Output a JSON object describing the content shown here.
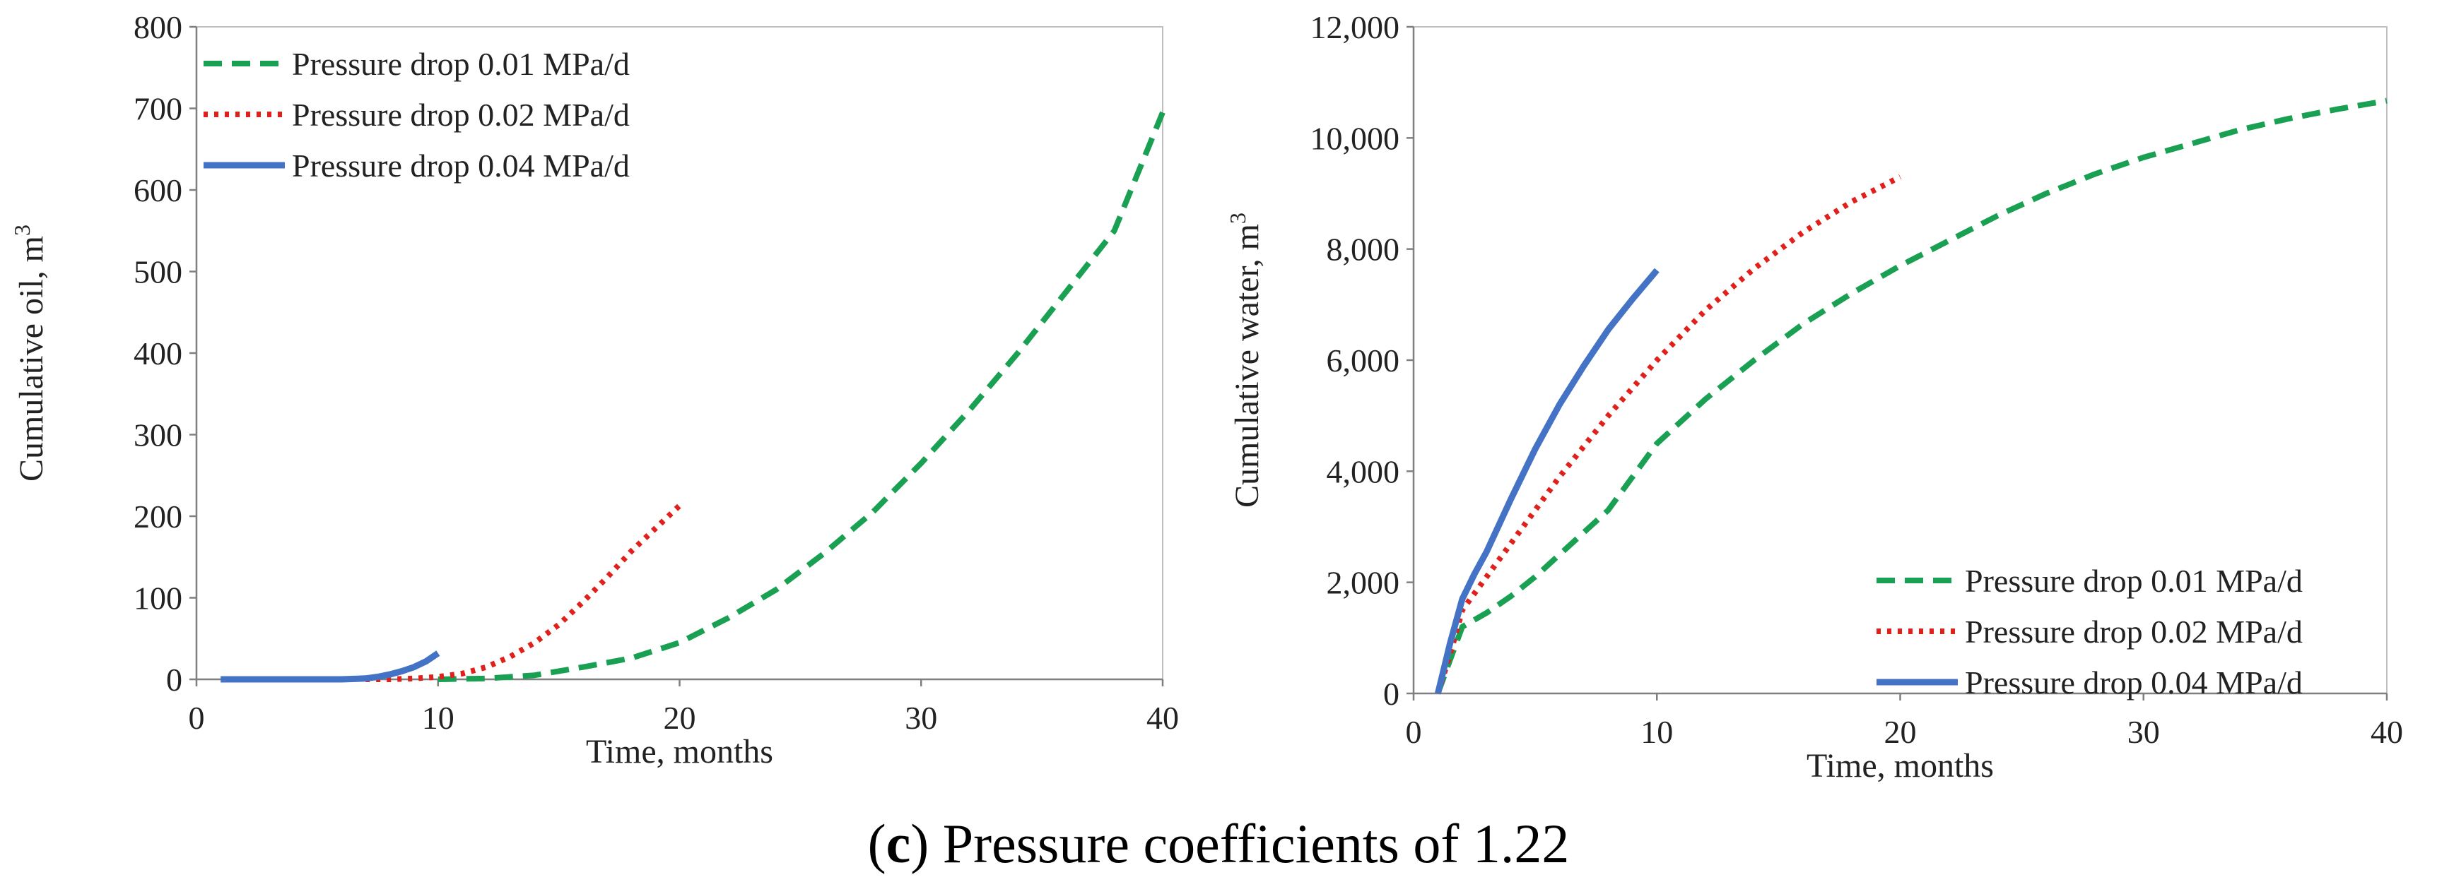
{
  "chart_data": [
    {
      "type": "line",
      "title": "",
      "xlabel": "Time, months",
      "ylabel": "Cumulative oil, m",
      "ylabel_superscript": "3",
      "xlim": [
        0,
        40
      ],
      "ylim": [
        0,
        800
      ],
      "xticks": [
        0,
        10,
        20,
        30,
        40
      ],
      "yticks": [
        0,
        100,
        200,
        300,
        400,
        500,
        600,
        700,
        800
      ],
      "grid": false,
      "legend_position": "top-left",
      "series": [
        {
          "name": "Pressure drop 0.01 MPa/d",
          "color": "#1aa052",
          "style": "dashed",
          "x": [
            10,
            12,
            14,
            16,
            18,
            20,
            22,
            24,
            26,
            28,
            30,
            32,
            34,
            36,
            38,
            40
          ],
          "y": [
            0,
            1,
            5,
            15,
            26,
            45,
            75,
            110,
            155,
            205,
            265,
            330,
            400,
            475,
            550,
            695
          ]
        },
        {
          "name": "Pressure drop 0.02 MPa/d",
          "color": "#e0201b",
          "style": "dotted",
          "x": [
            7,
            8,
            9,
            10,
            11,
            12,
            13,
            14,
            15,
            16,
            17,
            18,
            19,
            20
          ],
          "y": [
            0,
            0,
            1,
            3,
            7,
            15,
            28,
            45,
            67,
            95,
            125,
            157,
            185,
            213
          ]
        },
        {
          "name": "Pressure drop 0.04 MPa/d",
          "color": "#4472c4",
          "style": "solid",
          "x": [
            1,
            2,
            3,
            4,
            5,
            6,
            7,
            7.5,
            8,
            8.5,
            9,
            9.5,
            10
          ],
          "y": [
            0,
            0,
            0,
            0,
            0,
            0,
            1,
            3,
            6,
            10,
            15,
            22,
            32
          ]
        }
      ]
    },
    {
      "type": "line",
      "title": "",
      "xlabel": "Time, months",
      "ylabel": "Cumulative water, m",
      "ylabel_superscript": "3",
      "xlim": [
        0,
        40
      ],
      "ylim": [
        0,
        12000
      ],
      "xticks": [
        0,
        10,
        20,
        30,
        40
      ],
      "yticks": [
        0,
        2000,
        4000,
        6000,
        8000,
        10000,
        12000
      ],
      "ytick_labels": [
        "0",
        "2,000",
        "4,000",
        "6,000",
        "8,000",
        "10,000",
        "12,000"
      ],
      "grid": false,
      "legend_position": "bottom-right",
      "series": [
        {
          "name": "Pressure drop 0.01 MPa/d",
          "color": "#1aa052",
          "style": "dashed",
          "x": [
            1,
            1.5,
            2,
            3,
            4,
            5,
            6,
            8,
            10,
            12,
            14,
            16,
            18,
            20,
            22,
            24,
            26,
            28,
            30,
            32,
            34,
            36,
            38,
            40
          ],
          "y": [
            0,
            600,
            1200,
            1450,
            1750,
            2100,
            2500,
            3300,
            4500,
            5300,
            6000,
            6650,
            7200,
            7700,
            8150,
            8600,
            9000,
            9350,
            9650,
            9900,
            10150,
            10350,
            10520,
            10670
          ]
        },
        {
          "name": "Pressure drop 0.02 MPa/d",
          "color": "#e0201b",
          "style": "dotted",
          "x": [
            1,
            1.5,
            2,
            3,
            4,
            5,
            6,
            8,
            10,
            12,
            14,
            16,
            18,
            20
          ],
          "y": [
            0,
            700,
            1500,
            2100,
            2700,
            3300,
            3900,
            5000,
            6000,
            6900,
            7650,
            8300,
            8850,
            9300
          ]
        },
        {
          "name": "Pressure drop 0.04 MPa/d",
          "color": "#4472c4",
          "style": "solid",
          "x": [
            1,
            1.5,
            2,
            2.5,
            3,
            4,
            5,
            6,
            7,
            8,
            9,
            10
          ],
          "y": [
            0,
            900,
            1700,
            2150,
            2550,
            3500,
            4400,
            5200,
            5900,
            6550,
            7100,
            7620
          ]
        }
      ]
    }
  ],
  "caption": {
    "label": "c",
    "text": "Pressure coefficients of 1.22"
  }
}
